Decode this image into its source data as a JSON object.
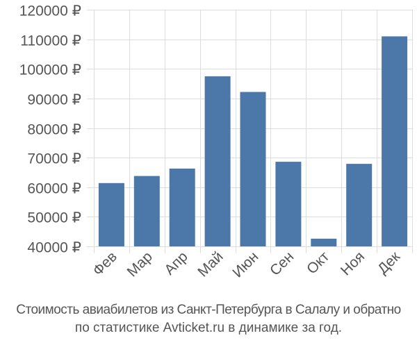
{
  "chart_data": {
    "type": "bar",
    "categories": [
      "Фев",
      "Мар",
      "Апр",
      "Май",
      "Июн",
      "Сен",
      "Окт",
      "Ноя",
      "Дек"
    ],
    "values": [
      61400,
      63800,
      66300,
      97500,
      92200,
      68600,
      42600,
      67900,
      111000
    ],
    "yticks": [
      "120000 ₽",
      "110000 ₽",
      "100000 ₽",
      "90000 ₽",
      "80000 ₽",
      "70000 ₽",
      "60000 ₽",
      "50000 ₽",
      "40000 ₽"
    ],
    "ytick_values": [
      120000,
      110000,
      100000,
      90000,
      80000,
      70000,
      60000,
      50000,
      40000
    ],
    "ylim": [
      40000,
      120000
    ],
    "title": "",
    "xlabel": "",
    "ylabel": "",
    "grid": true,
    "bar_color": "#4b77a9",
    "grid_color": "#dddddd",
    "text_color": "#555555"
  },
  "caption": {
    "line1": "Стоимость авиабилетов из Санкт-Петербурга в Салалу и обратно",
    "line2": "по статистике Avticket.ru в динамике за год."
  }
}
